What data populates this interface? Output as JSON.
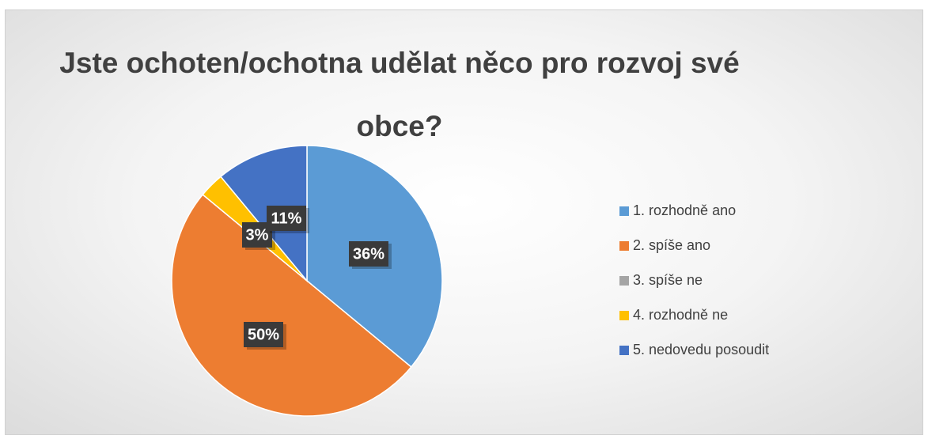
{
  "chart_data": {
    "type": "pie",
    "title": "Jste ochoten/ochotna udělat něco pro rozvoj své obce?",
    "categories": [
      "1. rozhodně ano",
      "2. spíše ano",
      "3. spíše ne",
      "4. rozhodně ne",
      "5. nedovedu posoudit"
    ],
    "values": [
      36,
      50,
      0,
      3,
      11
    ],
    "value_labels": [
      "36%",
      "50%",
      null,
      "3%",
      "11%"
    ],
    "colors": [
      "#5b9bd5",
      "#ed7d31",
      "#a5a5a5",
      "#ffc000",
      "#4472c4"
    ],
    "legend": "right"
  }
}
